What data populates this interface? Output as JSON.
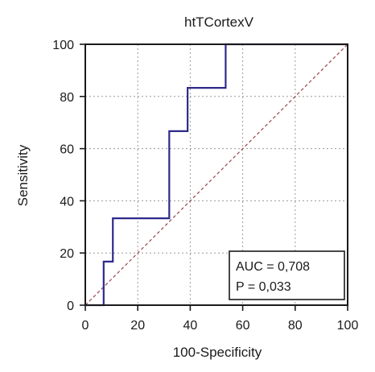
{
  "chart_data": {
    "type": "line",
    "title": "htTCortexV",
    "xlabel": "100-Specificity",
    "ylabel": "Sensitivity",
    "xlim": [
      0,
      100
    ],
    "ylim": [
      0,
      100
    ],
    "xticks": [
      0,
      20,
      40,
      60,
      80,
      100
    ],
    "yticks": [
      0,
      20,
      40,
      60,
      80,
      100
    ],
    "grid": true,
    "series": [
      {
        "name": "",
        "style": "step",
        "color": "#2e2a8a",
        "x": [
          0,
          7,
          7,
          10.5,
          10.5,
          32,
          32,
          39,
          39,
          53.5,
          53.5,
          100
        ],
        "y": [
          0,
          0,
          16.7,
          16.7,
          33.3,
          33.3,
          66.7,
          66.7,
          83.3,
          83.3,
          100,
          100
        ]
      },
      {
        "name": "",
        "style": "dashed",
        "color": "#a0525a",
        "x": [
          0,
          100
        ],
        "y": [
          0,
          100
        ]
      }
    ],
    "annotations": {
      "auc": "AUC = 0,708",
      "p": "P = 0,033"
    }
  }
}
